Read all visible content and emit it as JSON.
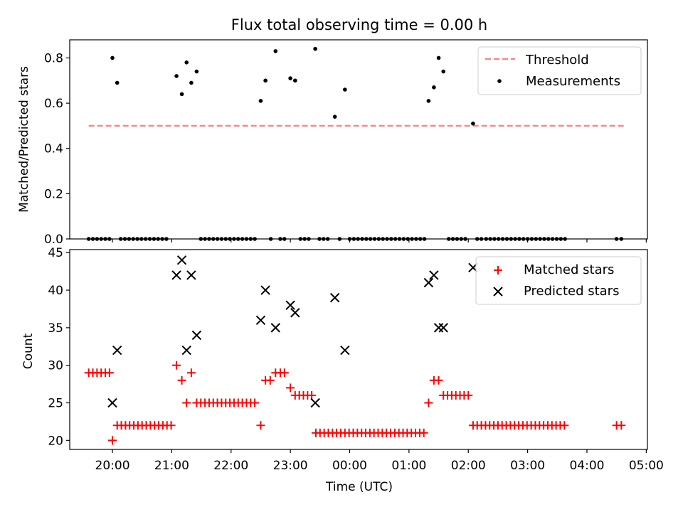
{
  "title": "Flux total observing time = 0.00 h",
  "colors": {
    "threshold": "#ff7f7f",
    "measurement": "#000000",
    "matched": "#ff0000",
    "predicted": "#000000",
    "axes": "#000000"
  },
  "chart_data": [
    {
      "type": "scatter",
      "ylabel": "Matched/Predicted stars",
      "xlabel": "",
      "ylim": [
        0,
        0.88
      ],
      "yticks": [
        0.0,
        0.2,
        0.4,
        0.6,
        0.8
      ],
      "ytick_labels": [
        "0.0",
        "0.2",
        "0.4",
        "0.6",
        "0.8"
      ],
      "legend": {
        "position": "top-right",
        "entries": [
          "Threshold",
          "Measurements"
        ]
      },
      "threshold": {
        "name": "Threshold",
        "x": [
          19.6,
          28.62
        ],
        "y": 0.5
      },
      "series": [
        {
          "name": "Measurements",
          "points": [
            [
              19.6,
              0
            ],
            [
              19.67,
              0
            ],
            [
              19.74,
              0
            ],
            [
              19.81,
              0
            ],
            [
              19.88,
              0
            ],
            [
              19.95,
              0
            ],
            [
              20.0,
              0.8
            ],
            [
              20.08,
              0.69
            ],
            [
              20.14,
              0
            ],
            [
              20.21,
              0
            ],
            [
              20.28,
              0
            ],
            [
              20.35,
              0
            ],
            [
              20.42,
              0
            ],
            [
              20.49,
              0
            ],
            [
              20.56,
              0
            ],
            [
              20.63,
              0
            ],
            [
              20.7,
              0
            ],
            [
              20.77,
              0
            ],
            [
              20.84,
              0
            ],
            [
              20.91,
              0
            ],
            [
              21.08,
              0.72
            ],
            [
              21.17,
              0.64
            ],
            [
              21.25,
              0.78
            ],
            [
              21.33,
              0.69
            ],
            [
              21.42,
              0.74
            ],
            [
              21.49,
              0
            ],
            [
              21.56,
              0
            ],
            [
              21.63,
              0
            ],
            [
              21.7,
              0
            ],
            [
              21.77,
              0
            ],
            [
              21.84,
              0
            ],
            [
              21.91,
              0
            ],
            [
              21.98,
              0
            ],
            [
              22.05,
              0
            ],
            [
              22.12,
              0
            ],
            [
              22.19,
              0
            ],
            [
              22.26,
              0
            ],
            [
              22.33,
              0
            ],
            [
              22.4,
              0
            ],
            [
              22.5,
              0.61
            ],
            [
              22.58,
              0.7
            ],
            [
              22.67,
              0
            ],
            [
              22.75,
              0.83
            ],
            [
              22.83,
              0
            ],
            [
              22.9,
              0
            ],
            [
              23.0,
              0.71
            ],
            [
              23.08,
              0.7
            ],
            [
              23.17,
              0
            ],
            [
              23.24,
              0
            ],
            [
              23.31,
              0
            ],
            [
              23.42,
              0.84
            ],
            [
              23.49,
              0
            ],
            [
              23.56,
              0
            ],
            [
              23.63,
              0
            ],
            [
              23.75,
              0.54
            ],
            [
              23.83,
              0
            ],
            [
              23.92,
              0.66
            ],
            [
              24.0,
              0
            ],
            [
              24.07,
              0
            ],
            [
              24.14,
              0
            ],
            [
              24.21,
              0
            ],
            [
              24.28,
              0
            ],
            [
              24.35,
              0
            ],
            [
              24.42,
              0
            ],
            [
              24.49,
              0
            ],
            [
              24.56,
              0
            ],
            [
              24.63,
              0
            ],
            [
              24.7,
              0
            ],
            [
              24.77,
              0
            ],
            [
              24.84,
              0
            ],
            [
              24.91,
              0
            ],
            [
              24.98,
              0
            ],
            [
              25.05,
              0
            ],
            [
              25.12,
              0
            ],
            [
              25.19,
              0
            ],
            [
              25.26,
              0
            ],
            [
              25.33,
              0.61
            ],
            [
              25.42,
              0.67
            ],
            [
              25.5,
              0.8
            ],
            [
              25.58,
              0.74
            ],
            [
              25.67,
              0
            ],
            [
              25.74,
              0
            ],
            [
              25.81,
              0
            ],
            [
              25.88,
              0
            ],
            [
              25.95,
              0
            ],
            [
              26.08,
              0.51
            ],
            [
              26.15,
              0
            ],
            [
              26.22,
              0
            ],
            [
              26.3,
              0
            ],
            [
              26.37,
              0
            ],
            [
              26.44,
              0
            ],
            [
              26.51,
              0
            ],
            [
              26.58,
              0
            ],
            [
              26.65,
              0
            ],
            [
              26.72,
              0
            ],
            [
              26.79,
              0
            ],
            [
              26.86,
              0
            ],
            [
              26.93,
              0
            ],
            [
              27.0,
              0
            ],
            [
              27.07,
              0
            ],
            [
              27.14,
              0
            ],
            [
              27.21,
              0
            ],
            [
              27.28,
              0
            ],
            [
              27.35,
              0
            ],
            [
              27.42,
              0
            ],
            [
              27.49,
              0
            ],
            [
              27.56,
              0
            ],
            [
              27.63,
              0
            ],
            [
              28.5,
              0
            ],
            [
              28.58,
              0
            ]
          ]
        }
      ]
    },
    {
      "type": "scatter",
      "ylabel": "Count",
      "xlabel": "Time (UTC)",
      "ylim": [
        18.8,
        45.4
      ],
      "yticks": [
        20,
        25,
        30,
        35,
        40,
        45
      ],
      "ytick_labels": [
        "20",
        "25",
        "30",
        "35",
        "40",
        "45"
      ],
      "xlim": [
        19.28,
        29.02
      ],
      "xticks": [
        20,
        21,
        22,
        23,
        24,
        25,
        26,
        27,
        28,
        29
      ],
      "xtick_labels": [
        "20:00",
        "21:00",
        "22:00",
        "23:00",
        "00:00",
        "01:00",
        "02:00",
        "03:00",
        "04:00",
        "05:00"
      ],
      "legend": {
        "position": "top-right",
        "entries": [
          "Matched stars",
          "Predicted stars"
        ]
      },
      "series": [
        {
          "name": "Matched stars",
          "marker": "plus",
          "points": [
            [
              19.6,
              29
            ],
            [
              19.67,
              29
            ],
            [
              19.74,
              29
            ],
            [
              19.81,
              29
            ],
            [
              19.88,
              29
            ],
            [
              19.95,
              29
            ],
            [
              20.0,
              20
            ],
            [
              20.08,
              22
            ],
            [
              20.15,
              22
            ],
            [
              20.22,
              22
            ],
            [
              20.29,
              22
            ],
            [
              20.36,
              22
            ],
            [
              20.43,
              22
            ],
            [
              20.5,
              22
            ],
            [
              20.57,
              22
            ],
            [
              20.64,
              22
            ],
            [
              20.71,
              22
            ],
            [
              20.78,
              22
            ],
            [
              20.85,
              22
            ],
            [
              20.92,
              22
            ],
            [
              20.99,
              22
            ],
            [
              21.08,
              30
            ],
            [
              21.17,
              28
            ],
            [
              21.25,
              25
            ],
            [
              21.33,
              29
            ],
            [
              21.42,
              25
            ],
            [
              21.49,
              25
            ],
            [
              21.56,
              25
            ],
            [
              21.63,
              25
            ],
            [
              21.7,
              25
            ],
            [
              21.77,
              25
            ],
            [
              21.84,
              25
            ],
            [
              21.91,
              25
            ],
            [
              21.98,
              25
            ],
            [
              22.05,
              25
            ],
            [
              22.12,
              25
            ],
            [
              22.19,
              25
            ],
            [
              22.26,
              25
            ],
            [
              22.33,
              25
            ],
            [
              22.4,
              25
            ],
            [
              22.5,
              22
            ],
            [
              22.58,
              28
            ],
            [
              22.66,
              28
            ],
            [
              22.75,
              29
            ],
            [
              22.83,
              29
            ],
            [
              22.9,
              29
            ],
            [
              23.0,
              27
            ],
            [
              23.08,
              26
            ],
            [
              23.15,
              26
            ],
            [
              23.22,
              26
            ],
            [
              23.29,
              26
            ],
            [
              23.36,
              26
            ],
            [
              23.43,
              21
            ],
            [
              23.5,
              21
            ],
            [
              23.57,
              21
            ],
            [
              23.64,
              21
            ],
            [
              23.71,
              21
            ],
            [
              23.78,
              21
            ],
            [
              23.85,
              21
            ],
            [
              23.92,
              21
            ],
            [
              23.99,
              21
            ],
            [
              24.06,
              21
            ],
            [
              24.13,
              21
            ],
            [
              24.2,
              21
            ],
            [
              24.27,
              21
            ],
            [
              24.34,
              21
            ],
            [
              24.41,
              21
            ],
            [
              24.48,
              21
            ],
            [
              24.55,
              21
            ],
            [
              24.62,
              21
            ],
            [
              24.69,
              21
            ],
            [
              24.76,
              21
            ],
            [
              24.83,
              21
            ],
            [
              24.9,
              21
            ],
            [
              24.97,
              21
            ],
            [
              25.04,
              21
            ],
            [
              25.11,
              21
            ],
            [
              25.18,
              21
            ],
            [
              25.25,
              21
            ],
            [
              25.33,
              25
            ],
            [
              25.42,
              28
            ],
            [
              25.5,
              28
            ],
            [
              25.58,
              26
            ],
            [
              25.65,
              26
            ],
            [
              25.72,
              26
            ],
            [
              25.79,
              26
            ],
            [
              25.86,
              26
            ],
            [
              25.93,
              26
            ],
            [
              26.0,
              26
            ],
            [
              26.08,
              22
            ],
            [
              26.15,
              22
            ],
            [
              26.22,
              22
            ],
            [
              26.29,
              22
            ],
            [
              26.36,
              22
            ],
            [
              26.43,
              22
            ],
            [
              26.5,
              22
            ],
            [
              26.57,
              22
            ],
            [
              26.64,
              22
            ],
            [
              26.71,
              22
            ],
            [
              26.78,
              22
            ],
            [
              26.85,
              22
            ],
            [
              26.92,
              22
            ],
            [
              26.99,
              22
            ],
            [
              27.06,
              22
            ],
            [
              27.13,
              22
            ],
            [
              27.2,
              22
            ],
            [
              27.27,
              22
            ],
            [
              27.34,
              22
            ],
            [
              27.41,
              22
            ],
            [
              27.48,
              22
            ],
            [
              27.55,
              22
            ],
            [
              27.62,
              22
            ],
            [
              28.5,
              22
            ],
            [
              28.58,
              22
            ]
          ]
        },
        {
          "name": "Predicted stars",
          "marker": "x",
          "points": [
            [
              20.0,
              25
            ],
            [
              20.08,
              32
            ],
            [
              21.08,
              42
            ],
            [
              21.17,
              44
            ],
            [
              21.25,
              32
            ],
            [
              21.33,
              42
            ],
            [
              21.42,
              34
            ],
            [
              22.5,
              36
            ],
            [
              22.58,
              40
            ],
            [
              22.75,
              35
            ],
            [
              23.0,
              38
            ],
            [
              23.08,
              37
            ],
            [
              23.42,
              25
            ],
            [
              23.75,
              39
            ],
            [
              23.92,
              32
            ],
            [
              25.33,
              41
            ],
            [
              25.42,
              42
            ],
            [
              25.5,
              35
            ],
            [
              25.58,
              35
            ],
            [
              26.08,
              43
            ]
          ]
        }
      ]
    }
  ]
}
